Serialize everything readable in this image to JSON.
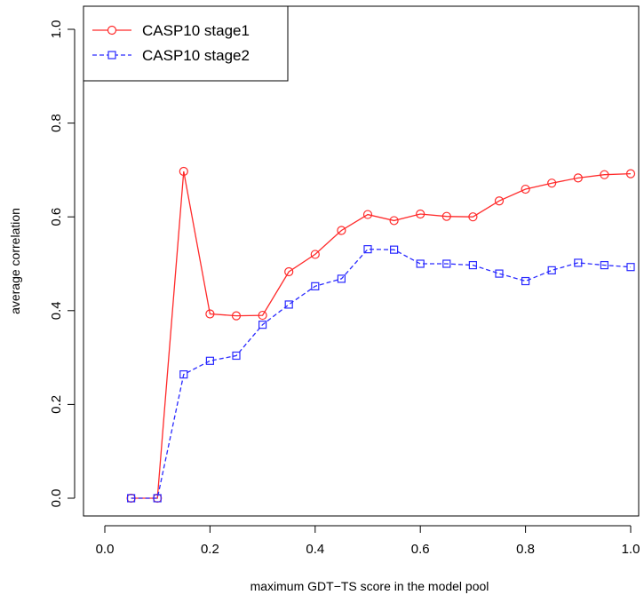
{
  "chart_data": {
    "type": "line",
    "title": "",
    "xlabel": "maximum GDT−TS score in the model pool",
    "ylabel": "average correlation",
    "xlim": [
      0.0,
      1.0
    ],
    "ylim": [
      0.0,
      1.0
    ],
    "x_ticks": [
      "0.0",
      "0.2",
      "0.4",
      "0.6",
      "0.8",
      "1.0"
    ],
    "y_ticks": [
      "0.0",
      "0.2",
      "0.4",
      "0.6",
      "0.8",
      "1.0"
    ],
    "grid": false,
    "legend_position": "top-left",
    "x": [
      0.05,
      0.1,
      0.15,
      0.2,
      0.25,
      0.3,
      0.35,
      0.4,
      0.45,
      0.5,
      0.55,
      0.6,
      0.65,
      0.7,
      0.75,
      0.8,
      0.85,
      0.9,
      0.95,
      1.0
    ],
    "series": [
      {
        "name": "CASP10 stage1",
        "color": "#ff2a2a",
        "line_style": "solid",
        "marker": "circle",
        "values": [
          0.0,
          0.0,
          0.697,
          0.393,
          0.389,
          0.39,
          0.483,
          0.52,
          0.571,
          0.605,
          0.592,
          0.606,
          0.601,
          0.6,
          0.634,
          0.659,
          0.672,
          0.683,
          0.69,
          0.692
        ]
      },
      {
        "name": "CASP10 stage2",
        "color": "#2a2aff",
        "line_style": "dashed",
        "marker": "square",
        "values": [
          0.0,
          0.0,
          0.264,
          0.293,
          0.304,
          0.37,
          0.413,
          0.452,
          0.468,
          0.531,
          0.53,
          0.5,
          0.5,
          0.497,
          0.479,
          0.463,
          0.486,
          0.502,
          0.497,
          0.493
        ]
      }
    ]
  }
}
